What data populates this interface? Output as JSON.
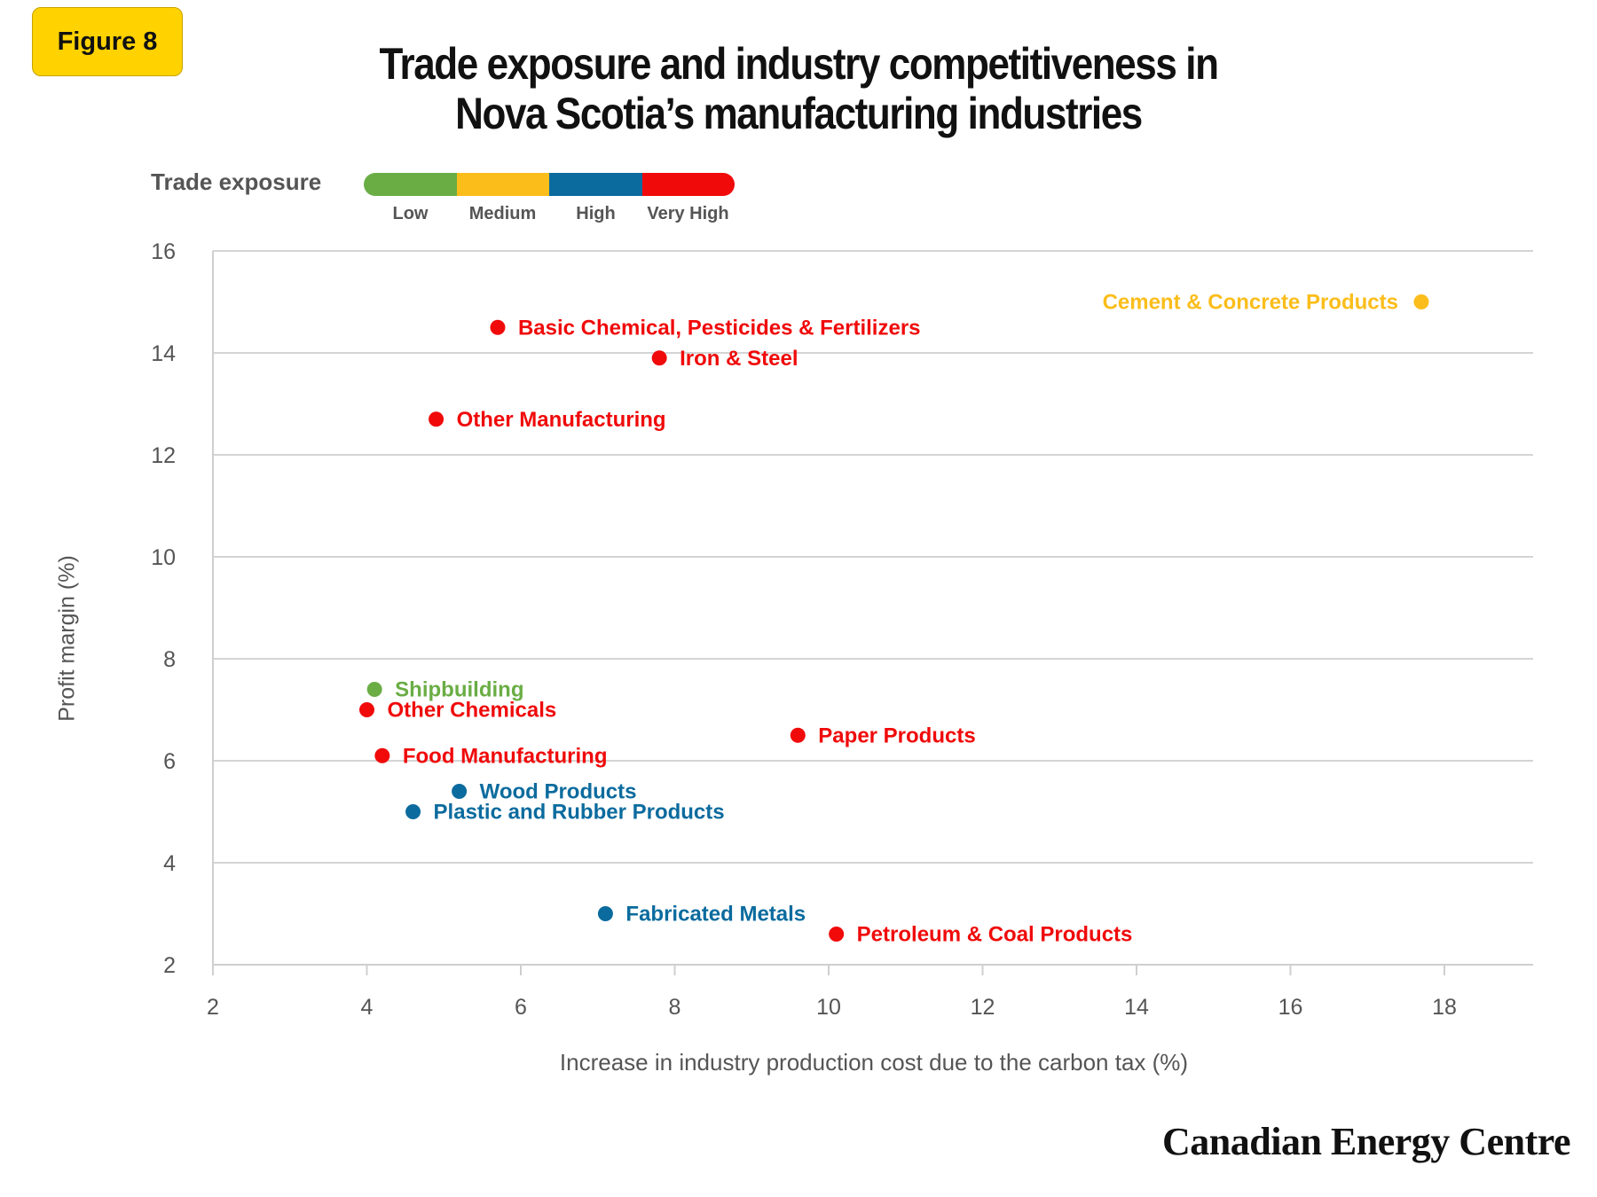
{
  "badge": "Figure 8",
  "title_line1": "Trade exposure and industry competitiveness in",
  "title_line2": "Nova Scotia’s manufacturing industries",
  "legend": {
    "title": "Trade exposure",
    "levels": [
      {
        "label": "Low",
        "color": "#6aad45"
      },
      {
        "label": "Medium",
        "color": "#fbbd1a"
      },
      {
        "label": "High",
        "color": "#0b6b9e"
      },
      {
        "label": "Very High",
        "color": "#f00a0a"
      }
    ]
  },
  "brand": "Canadian Energy Centre",
  "chart_data": {
    "type": "scatter",
    "title": "Trade exposure and industry competitiveness in Nova Scotia’s manufacturing industries",
    "xlabel": "Increase in industry production cost due to the carbon tax (%)",
    "ylabel": "Profit margin (%)",
    "xlim": [
      2,
      19.2
    ],
    "ylim": [
      2,
      16
    ],
    "xticks": [
      2,
      4,
      6,
      8,
      10,
      12,
      14,
      16,
      18
    ],
    "yticks": [
      2,
      4,
      6,
      8,
      10,
      12,
      14,
      16
    ],
    "grid": "horizontal",
    "legend_position": "top-left",
    "points": [
      {
        "name": "Cement & Concrete Products",
        "x": 17.7,
        "y": 15.0,
        "exposure": "Medium",
        "label_side": "left"
      },
      {
        "name": "Basic Chemical, Pesticides & Fertilizers",
        "x": 5.7,
        "y": 14.5,
        "exposure": "Very High",
        "label_side": "right"
      },
      {
        "name": "Iron & Steel",
        "x": 7.8,
        "y": 13.9,
        "exposure": "Very High",
        "label_side": "right"
      },
      {
        "name": "Other Manufacturing",
        "x": 4.9,
        "y": 12.7,
        "exposure": "Very High",
        "label_side": "right"
      },
      {
        "name": "Shipbuilding",
        "x": 4.1,
        "y": 7.4,
        "exposure": "Low",
        "label_side": "right"
      },
      {
        "name": "Other Chemicals",
        "x": 4.0,
        "y": 7.0,
        "exposure": "Very High",
        "label_side": "right"
      },
      {
        "name": "Paper Products",
        "x": 9.6,
        "y": 6.5,
        "exposure": "Very High",
        "label_side": "right"
      },
      {
        "name": "Food Manufacturing",
        "x": 4.2,
        "y": 6.1,
        "exposure": "Very High",
        "label_side": "right"
      },
      {
        "name": "Wood Products",
        "x": 5.2,
        "y": 5.4,
        "exposure": "High",
        "label_side": "right"
      },
      {
        "name": "Plastic and Rubber Products",
        "x": 4.6,
        "y": 5.0,
        "exposure": "High",
        "label_side": "right"
      },
      {
        "name": "Fabricated Metals",
        "x": 7.1,
        "y": 3.0,
        "exposure": "High",
        "label_side": "right"
      },
      {
        "name": "Petroleum & Coal Products",
        "x": 10.1,
        "y": 2.6,
        "exposure": "Very High",
        "label_side": "right"
      }
    ]
  }
}
